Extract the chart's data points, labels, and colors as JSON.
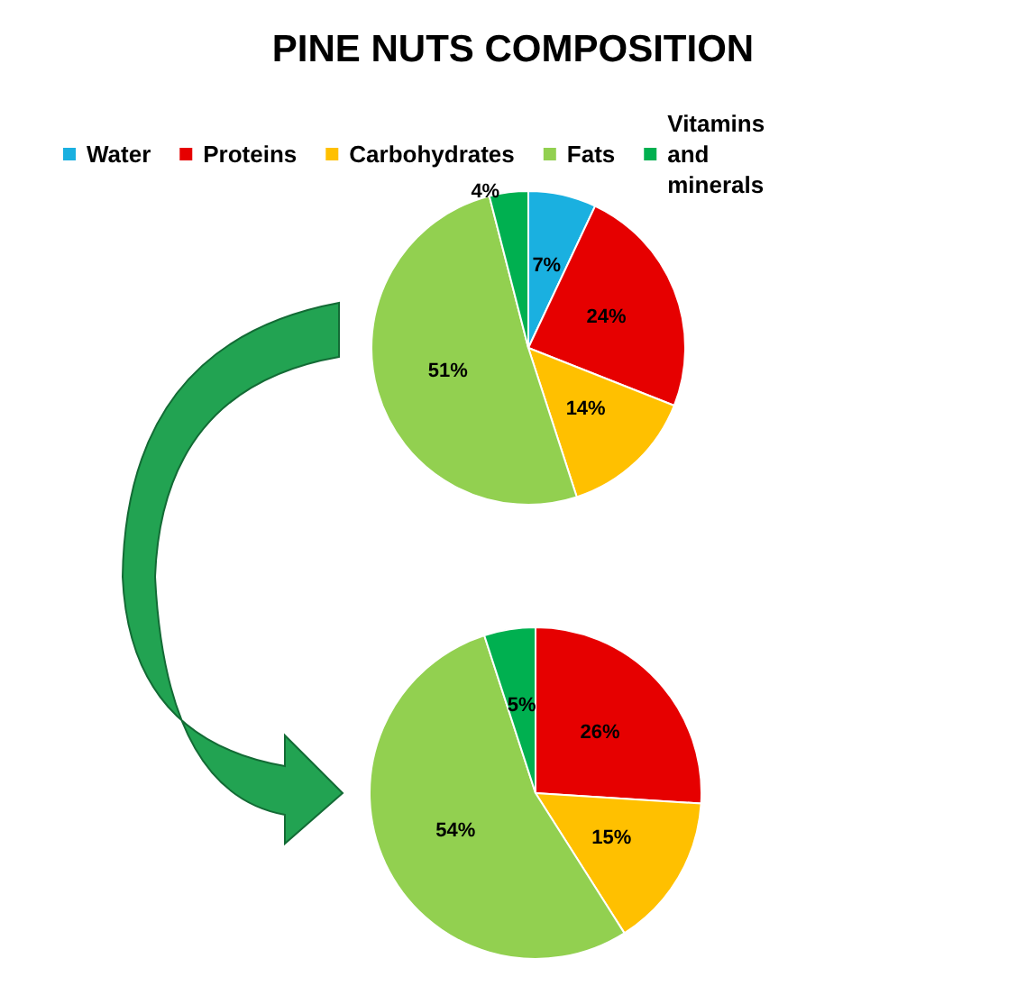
{
  "chart_data": [
    {
      "type": "pie",
      "title": "PINE NUTS COMPOSITION",
      "categories": [
        "Water",
        "Proteins",
        "Carbohydrates",
        "Fats",
        "Vitamins and minerals"
      ],
      "values": [
        7,
        24,
        14,
        51,
        4
      ],
      "value_labels": [
        "7%",
        "24%",
        "14%",
        "51%",
        "4%"
      ],
      "colors": [
        "#1ab0e0",
        "#e60000",
        "#ffc000",
        "#92d050",
        "#00b050"
      ],
      "legend": "top"
    },
    {
      "type": "pie",
      "categories": [
        null,
        null,
        null,
        null
      ],
      "values": [
        26,
        15,
        54,
        5
      ],
      "value_labels": [
        "26%",
        "15%",
        "54%",
        "5%"
      ],
      "colors": [
        "#e60000",
        "#ffc000",
        "#92d050",
        "#00b050"
      ]
    }
  ]
}
